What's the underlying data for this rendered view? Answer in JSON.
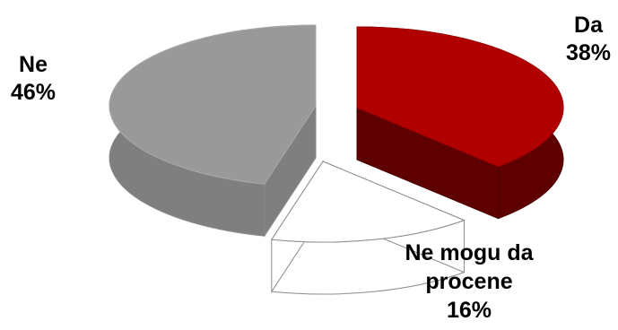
{
  "chart_data": {
    "type": "pie",
    "style": "3d-exploded",
    "slices": [
      {
        "name": "Da",
        "value": 38,
        "label": "38%",
        "color": "#b00000",
        "side_color": "#5e0000"
      },
      {
        "name": "Ne mogu da procene",
        "value": 16,
        "label": "16%",
        "color": "#ffffff",
        "side_color": "#ffffff"
      },
      {
        "name": "Ne",
        "value": 46,
        "label": "46%",
        "color": "#999999",
        "side_color": "#7f7f7f"
      }
    ],
    "labels": {
      "da": {
        "name": "Da",
        "pct": "38%"
      },
      "ne": {
        "name": "Ne",
        "pct": "46%"
      },
      "nemogu": {
        "line1": "Ne mogu da",
        "line2": "procene",
        "pct": "16%"
      }
    }
  }
}
